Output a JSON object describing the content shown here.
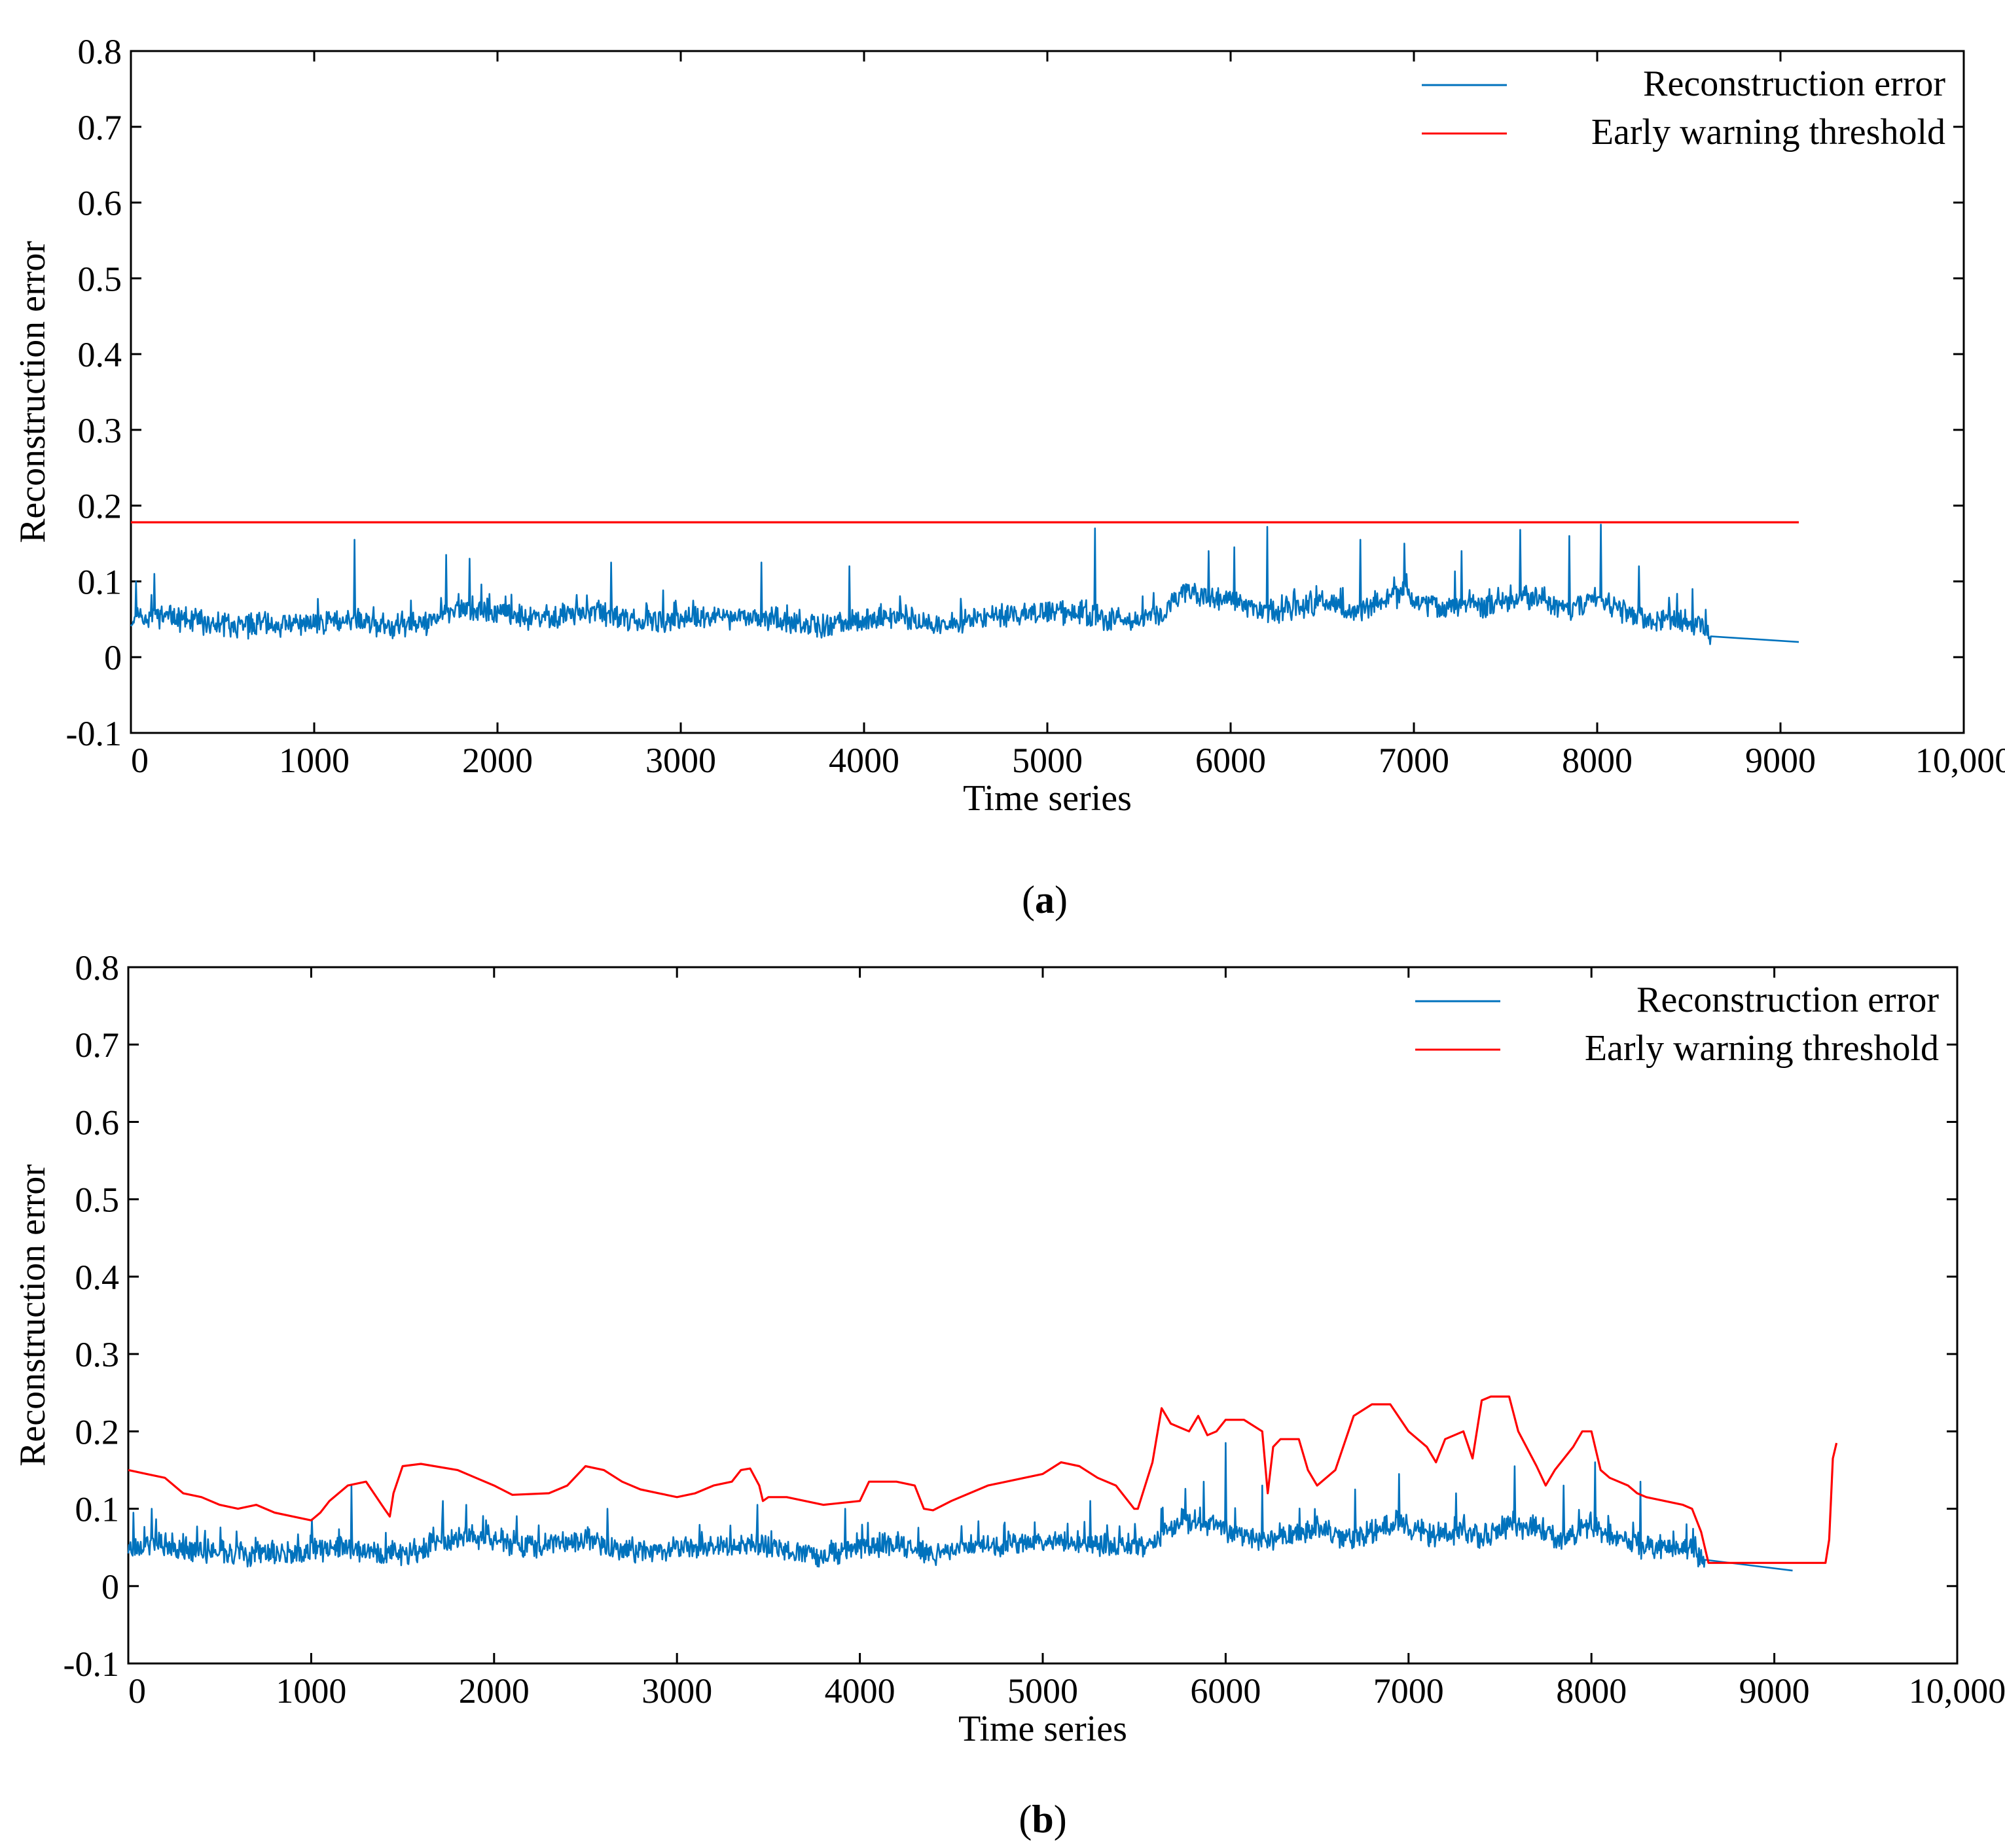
{
  "colors": {
    "error": "#0072BD",
    "threshold": "#FF0000"
  },
  "chart_data": [
    {
      "type": "line",
      "panel_label": "a",
      "xlabel": "Time series",
      "ylabel": "Reconstruction error",
      "xlim": [
        0,
        10000
      ],
      "ylim": [
        -0.1,
        0.8
      ],
      "xticks": [
        0,
        1000,
        2000,
        3000,
        4000,
        5000,
        6000,
        7000,
        8000,
        9000,
        10000
      ],
      "xtick_labels": [
        "0",
        "1000",
        "2000",
        "3000",
        "4000",
        "5000",
        "6000",
        "7000",
        "8000",
        "9000",
        "10,000"
      ],
      "yticks": [
        -0.1,
        0,
        0.1,
        0.2,
        0.3,
        0.4,
        0.5,
        0.6,
        0.7,
        0.8
      ],
      "ytick_labels": [
        "-0.1",
        "0",
        "0.1",
        "0.2",
        "0.3",
        "0.4",
        "0.5",
        "0.6",
        "0.7",
        "0.8"
      ],
      "legend_position": "top-right",
      "series": [
        {
          "name": "Reconstruction error",
          "color_key": "error",
          "noise_seed": 11,
          "noise_amplitude": 0.012,
          "x": [
            0,
            150,
            400,
            700,
            1000,
            1200,
            1400,
            1600,
            1800,
            2000,
            2200,
            2500,
            2800,
            3000,
            3200,
            3400,
            3600,
            3800,
            4000,
            4200,
            4400,
            4600,
            4800,
            5000,
            5200,
            5400,
            5600,
            5750,
            5900,
            6050,
            6200,
            6350,
            6500,
            6650,
            6800,
            6950,
            7100,
            7250,
            7400,
            7550,
            7700,
            7850,
            8000,
            8150,
            8300,
            8450,
            8600,
            8620,
            9100
          ],
          "y": [
            0.05,
            0.055,
            0.045,
            0.04,
            0.045,
            0.05,
            0.04,
            0.045,
            0.065,
            0.06,
            0.05,
            0.06,
            0.045,
            0.05,
            0.05,
            0.055,
            0.045,
            0.04,
            0.05,
            0.055,
            0.04,
            0.05,
            0.055,
            0.06,
            0.055,
            0.05,
            0.055,
            0.085,
            0.08,
            0.07,
            0.06,
            0.065,
            0.075,
            0.06,
            0.07,
            0.085,
            0.065,
            0.07,
            0.065,
            0.08,
            0.075,
            0.06,
            0.08,
            0.06,
            0.05,
            0.05,
            0.04,
            0.02,
            0.02
          ],
          "spikes": [
            [
              30,
              0.1
            ],
            [
              130,
              0.11
            ],
            [
              1220,
              0.155
            ],
            [
              1720,
              0.135
            ],
            [
              1850,
              0.13
            ],
            [
              2620,
              0.125
            ],
            [
              3440,
              0.125
            ],
            [
              3920,
              0.12
            ],
            [
              5260,
              0.17
            ],
            [
              5880,
              0.14
            ],
            [
              6020,
              0.145
            ],
            [
              6200,
              0.172
            ],
            [
              6710,
              0.155
            ],
            [
              6950,
              0.15
            ],
            [
              7260,
              0.14
            ],
            [
              7580,
              0.168
            ],
            [
              7850,
              0.16
            ],
            [
              8020,
              0.175
            ],
            [
              8230,
              0.12
            ],
            [
              8520,
              0.09
            ]
          ]
        },
        {
          "name": "Early warning threshold",
          "color_key": "threshold",
          "x": [
            0,
            9100
          ],
          "y": [
            0.178,
            0.178
          ]
        }
      ]
    },
    {
      "type": "line",
      "panel_label": "b",
      "xlabel": "Time series",
      "ylabel": "Reconstruction error",
      "xlim": [
        0,
        10000
      ],
      "ylim": [
        -0.1,
        0.8
      ],
      "xticks": [
        0,
        1000,
        2000,
        3000,
        4000,
        5000,
        6000,
        7000,
        8000,
        9000,
        10000
      ],
      "xtick_labels": [
        "0",
        "1000",
        "2000",
        "3000",
        "4000",
        "5000",
        "6000",
        "7000",
        "8000",
        "9000",
        "10,000"
      ],
      "yticks": [
        -0.1,
        0,
        0.1,
        0.2,
        0.3,
        0.4,
        0.5,
        0.6,
        0.7,
        0.8
      ],
      "ytick_labels": [
        "-0.1",
        "0",
        "0.1",
        "0.2",
        "0.3",
        "0.4",
        "0.5",
        "0.6",
        "0.7",
        "0.8"
      ],
      "legend_position": "top-right",
      "series": [
        {
          "name": "Reconstruction error",
          "color_key": "error",
          "noise_seed": 23,
          "noise_amplitude": 0.012,
          "x": [
            0,
            150,
            400,
            700,
            1000,
            1200,
            1400,
            1600,
            1800,
            2000,
            2200,
            2500,
            2800,
            3000,
            3200,
            3400,
            3600,
            3800,
            4000,
            4200,
            4400,
            4600,
            4800,
            5000,
            5200,
            5400,
            5600,
            5750,
            5900,
            6050,
            6200,
            6350,
            6500,
            6650,
            6800,
            6950,
            7100,
            7250,
            7400,
            7550,
            7700,
            7850,
            8000,
            8150,
            8300,
            8450,
            8600,
            8620,
            9100
          ],
          "y": [
            0.05,
            0.055,
            0.045,
            0.04,
            0.045,
            0.05,
            0.04,
            0.045,
            0.065,
            0.06,
            0.05,
            0.06,
            0.045,
            0.05,
            0.05,
            0.055,
            0.045,
            0.04,
            0.05,
            0.055,
            0.04,
            0.05,
            0.055,
            0.06,
            0.055,
            0.05,
            0.055,
            0.085,
            0.08,
            0.07,
            0.06,
            0.065,
            0.075,
            0.06,
            0.07,
            0.085,
            0.065,
            0.07,
            0.065,
            0.08,
            0.075,
            0.06,
            0.08,
            0.06,
            0.05,
            0.05,
            0.04,
            0.02,
            0.02
          ],
          "spikes": [
            [
              30,
              0.095
            ],
            [
              130,
              0.1
            ],
            [
              1220,
              0.13
            ],
            [
              1720,
              0.11
            ],
            [
              1850,
              0.105
            ],
            [
              2620,
              0.1
            ],
            [
              3440,
              0.105
            ],
            [
              3920,
              0.1
            ],
            [
              5260,
              0.11
            ],
            [
              5650,
              0.1
            ],
            [
              5880,
              0.135
            ],
            [
              6000,
              0.185
            ],
            [
              6200,
              0.13
            ],
            [
              6710,
              0.125
            ],
            [
              6950,
              0.145
            ],
            [
              7260,
              0.12
            ],
            [
              7580,
              0.155
            ],
            [
              7850,
              0.13
            ],
            [
              8020,
              0.16
            ],
            [
              8270,
              0.135
            ],
            [
              8520,
              0.08
            ]
          ]
        },
        {
          "name": "Early warning threshold",
          "color_key": "threshold",
          "x": [
            0,
            100,
            200,
            300,
            400,
            500,
            600,
            700,
            800,
            900,
            1000,
            1050,
            1100,
            1200,
            1300,
            1400,
            1430,
            1450,
            1500,
            1600,
            1800,
            1900,
            2000,
            2100,
            2300,
            2400,
            2500,
            2600,
            2700,
            2800,
            2900,
            3000,
            3100,
            3200,
            3300,
            3350,
            3400,
            3450,
            3470,
            3500,
            3600,
            3800,
            4000,
            4050,
            4200,
            4300,
            4350,
            4400,
            4500,
            4700,
            4900,
            5000,
            5100,
            5200,
            5300,
            5400,
            5500,
            5520,
            5600,
            5650,
            5700,
            5800,
            5850,
            5900,
            5950,
            6000,
            6100,
            6200,
            6230,
            6260,
            6300,
            6400,
            6450,
            6500,
            6600,
            6700,
            6800,
            6900,
            7000,
            7100,
            7150,
            7200,
            7300,
            7350,
            7400,
            7450,
            7550,
            7600,
            7700,
            7750,
            7800,
            7900,
            7950,
            8000,
            8050,
            8100,
            8200,
            8250,
            8300,
            8400,
            8500,
            8550,
            8600,
            8640,
            9280,
            9300,
            9320,
            9340
          ],
          "y": [
            0.15,
            0.145,
            0.14,
            0.12,
            0.115,
            0.105,
            0.1,
            0.105,
            0.095,
            0.09,
            0.085,
            0.095,
            0.11,
            0.13,
            0.135,
            0.1,
            0.09,
            0.12,
            0.155,
            0.158,
            0.15,
            0.14,
            0.13,
            0.118,
            0.12,
            0.13,
            0.155,
            0.15,
            0.135,
            0.125,
            0.12,
            0.115,
            0.12,
            0.13,
            0.135,
            0.15,
            0.152,
            0.13,
            0.11,
            0.115,
            0.115,
            0.105,
            0.11,
            0.135,
            0.135,
            0.13,
            0.1,
            0.098,
            0.11,
            0.13,
            0.14,
            0.145,
            0.16,
            0.155,
            0.14,
            0.13,
            0.1,
            0.1,
            0.16,
            0.23,
            0.21,
            0.2,
            0.22,
            0.195,
            0.2,
            0.215,
            0.215,
            0.2,
            0.12,
            0.18,
            0.19,
            0.19,
            0.15,
            0.13,
            0.15,
            0.22,
            0.235,
            0.235,
            0.2,
            0.18,
            0.16,
            0.19,
            0.2,
            0.165,
            0.24,
            0.245,
            0.245,
            0.2,
            0.155,
            0.13,
            0.15,
            0.18,
            0.2,
            0.2,
            0.15,
            0.14,
            0.13,
            0.12,
            0.115,
            0.11,
            0.105,
            0.1,
            0.07,
            0.03,
            0.03,
            0.06,
            0.165,
            0.185
          ]
        }
      ]
    }
  ]
}
